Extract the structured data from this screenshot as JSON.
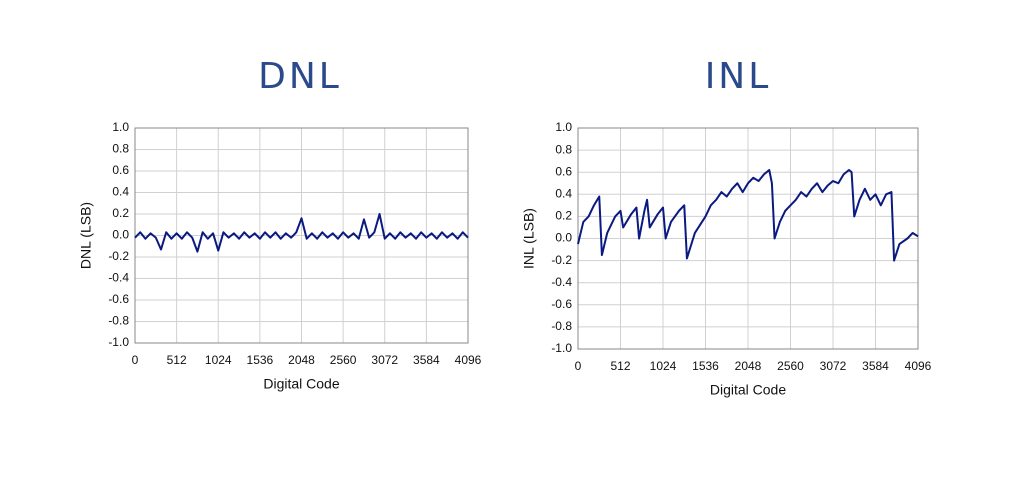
{
  "chart_data": [
    {
      "type": "line",
      "title": "DNL",
      "x_label": "Digital Code",
      "y_label": "DNL (LSB)",
      "xlim": [
        0,
        4096
      ],
      "xticks": [
        0,
        512,
        1024,
        1536,
        2048,
        2560,
        3072,
        3584,
        4096
      ],
      "ylim": [
        -1,
        1
      ],
      "yticks": [
        {
          "value": -1,
          "label": "-1.0"
        },
        -0.8,
        -0.6,
        -0.4,
        -0.2,
        {
          "value": 0,
          "label": "0.0"
        },
        0.2,
        0.4,
        0.6,
        0.8,
        {
          "value": 1,
          "label": "1.0"
        }
      ],
      "grid": true,
      "x": [
        0,
        64,
        128,
        192,
        256,
        320,
        384,
        448,
        512,
        576,
        640,
        704,
        768,
        832,
        896,
        960,
        1024,
        1088,
        1152,
        1216,
        1280,
        1344,
        1408,
        1472,
        1536,
        1600,
        1664,
        1728,
        1792,
        1856,
        1920,
        1984,
        2048,
        2112,
        2176,
        2240,
        2304,
        2368,
        2432,
        2496,
        2560,
        2624,
        2688,
        2752,
        2816,
        2880,
        2944,
        3008,
        3072,
        3136,
        3200,
        3264,
        3328,
        3392,
        3456,
        3520,
        3584,
        3648,
        3712,
        3776,
        3840,
        3904,
        3968,
        4032,
        4096
      ],
      "series": [
        {
          "color": "#0a1a80",
          "values": [
            -0.02,
            0.03,
            -0.03,
            0.02,
            -0.02,
            -0.13,
            0.03,
            -0.03,
            0.02,
            -0.03,
            0.03,
            -0.02,
            -0.15,
            0.03,
            -0.03,
            0.02,
            -0.14,
            0.03,
            -0.02,
            0.02,
            -0.03,
            0.03,
            -0.02,
            0.02,
            -0.03,
            0.03,
            -0.02,
            0.03,
            -0.03,
            0.02,
            -0.02,
            0.03,
            0.16,
            -0.03,
            0.02,
            -0.03,
            0.03,
            -0.02,
            0.02,
            -0.03,
            0.03,
            -0.02,
            0.02,
            -0.03,
            0.15,
            -0.02,
            0.03,
            0.2,
            -0.03,
            0.02,
            -0.03,
            0.03,
            -0.02,
            0.02,
            -0.03,
            0.03,
            -0.02,
            0.02,
            -0.03,
            0.03,
            -0.02,
            0.02,
            -0.03,
            0.03,
            -0.02
          ]
        }
      ]
    },
    {
      "type": "line",
      "title": "INL",
      "x_label": "Digital Code",
      "y_label": "INL (LSB)",
      "xlim": [
        0,
        4096
      ],
      "xticks": [
        0,
        512,
        1024,
        1536,
        2048,
        2560,
        3072,
        3584,
        4096
      ],
      "ylim": [
        -1,
        1
      ],
      "yticks": [
        {
          "value": -1,
          "label": "-1.0"
        },
        -0.8,
        -0.6,
        -0.4,
        -0.2,
        {
          "value": 0,
          "label": "0.0"
        },
        0.2,
        0.4,
        0.6,
        0.8,
        {
          "value": 1,
          "label": "1.0"
        }
      ],
      "grid": true,
      "x": [
        0,
        64,
        128,
        192,
        256,
        288,
        352,
        448,
        512,
        544,
        640,
        704,
        736,
        800,
        832,
        864,
        960,
        1024,
        1056,
        1120,
        1216,
        1280,
        1312,
        1408,
        1536,
        1600,
        1664,
        1728,
        1792,
        1856,
        1920,
        1984,
        2048,
        2112,
        2176,
        2240,
        2304,
        2336,
        2368,
        2432,
        2496,
        2560,
        2624,
        2688,
        2752,
        2816,
        2880,
        2944,
        3008,
        3072,
        3136,
        3200,
        3264,
        3296,
        3328,
        3392,
        3456,
        3520,
        3584,
        3648,
        3712,
        3776,
        3808,
        3872,
        3968,
        4032,
        4096
      ],
      "series": [
        {
          "color": "#0a1a80",
          "values": [
            -0.05,
            0.15,
            0.2,
            0.3,
            0.38,
            -0.15,
            0.05,
            0.2,
            0.25,
            0.1,
            0.22,
            0.28,
            0.0,
            0.25,
            0.35,
            0.1,
            0.22,
            0.28,
            0.0,
            0.15,
            0.25,
            0.3,
            -0.18,
            0.05,
            0.2,
            0.3,
            0.35,
            0.42,
            0.38,
            0.45,
            0.5,
            0.42,
            0.5,
            0.55,
            0.52,
            0.58,
            0.62,
            0.5,
            0.0,
            0.15,
            0.25,
            0.3,
            0.35,
            0.42,
            0.38,
            0.45,
            0.5,
            0.42,
            0.48,
            0.52,
            0.5,
            0.58,
            0.62,
            0.6,
            0.2,
            0.35,
            0.45,
            0.35,
            0.4,
            0.3,
            0.4,
            0.42,
            -0.2,
            -0.05,
            0.0,
            0.05,
            0.02
          ]
        }
      ]
    }
  ]
}
